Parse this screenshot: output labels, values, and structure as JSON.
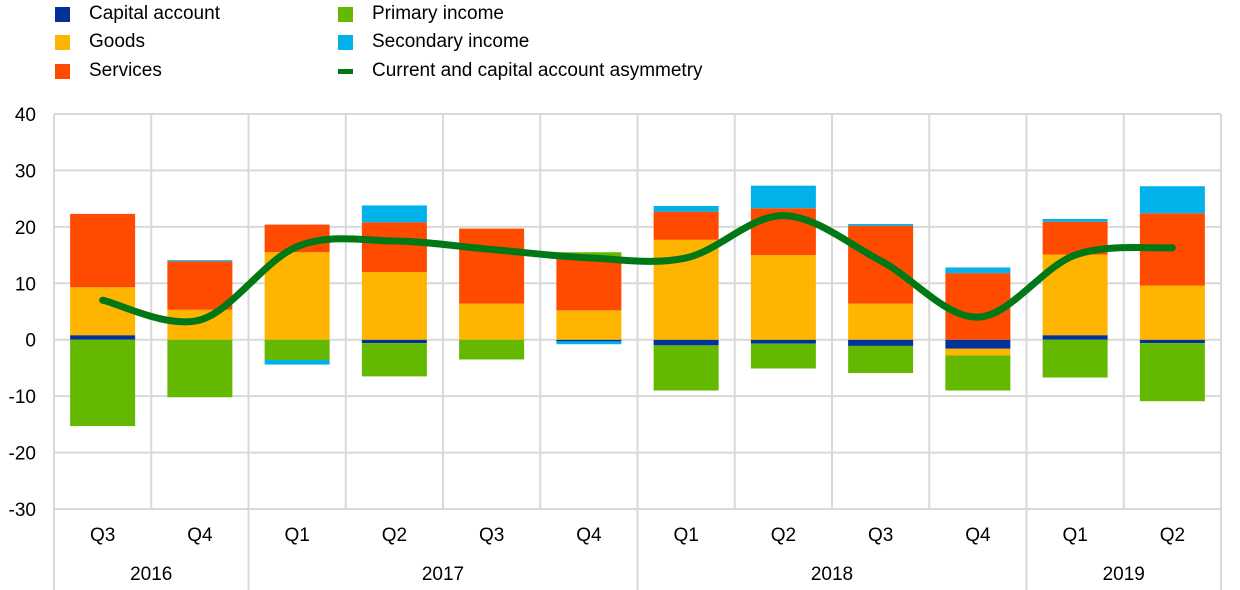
{
  "chart_data": {
    "type": "bar",
    "stacked": true,
    "title": "",
    "xlabel": "",
    "ylabel": "",
    "ylim": [
      -30,
      40
    ],
    "yticks": [
      40,
      30,
      20,
      10,
      0,
      -10,
      -20,
      -30
    ],
    "grid": true,
    "legend_position": "top-left",
    "categories": [
      "Q3",
      "Q4",
      "Q1",
      "Q2",
      "Q3",
      "Q4",
      "Q1",
      "Q2",
      "Q3",
      "Q4",
      "Q1",
      "Q2"
    ],
    "year_groups": [
      {
        "label": "2016",
        "span": 2
      },
      {
        "label": "2017",
        "span": 4
      },
      {
        "label": "2018",
        "span": 4
      },
      {
        "label": "2019",
        "span": 2
      }
    ],
    "series": [
      {
        "name": "Capital account",
        "color": "#003299",
        "type": "bar",
        "values": [
          0.8,
          0.0,
          0.0,
          -0.6,
          0.0,
          -0.3,
          -1.0,
          -0.7,
          -1.1,
          -1.6,
          0.8,
          -0.6
        ]
      },
      {
        "name": "Goods",
        "color": "#FFB400",
        "type": "bar",
        "values": [
          8.5,
          5.3,
          15.5,
          12.0,
          6.4,
          5.2,
          17.7,
          15.0,
          6.4,
          -1.2,
          14.3,
          9.6
        ]
      },
      {
        "name": "Services",
        "color": "#FF4B00",
        "type": "bar",
        "values": [
          13.0,
          8.6,
          4.9,
          8.8,
          13.3,
          9.5,
          5.0,
          8.3,
          13.8,
          11.8,
          5.8,
          12.8
        ]
      },
      {
        "name": "Primary income",
        "color": "#65B800",
        "type": "bar",
        "values": [
          -15.3,
          -10.2,
          -3.6,
          -5.9,
          -3.5,
          0.8,
          -8.0,
          -4.4,
          -4.8,
          -6.2,
          -6.7,
          -10.3
        ]
      },
      {
        "name": "Secondary income",
        "color": "#00B1EA",
        "type": "bar",
        "values": [
          0.0,
          0.2,
          -0.8,
          3.0,
          0.0,
          -0.5,
          1.0,
          4.0,
          0.3,
          1.0,
          0.5,
          4.8
        ]
      },
      {
        "name": "Current and capital account asymmetry",
        "color": "#007816",
        "type": "line",
        "values": [
          7.0,
          3.5,
          16.5,
          17.5,
          16.0,
          14.5,
          14.5,
          22.0,
          14.0,
          4.0,
          15.0,
          16.3
        ]
      }
    ]
  }
}
